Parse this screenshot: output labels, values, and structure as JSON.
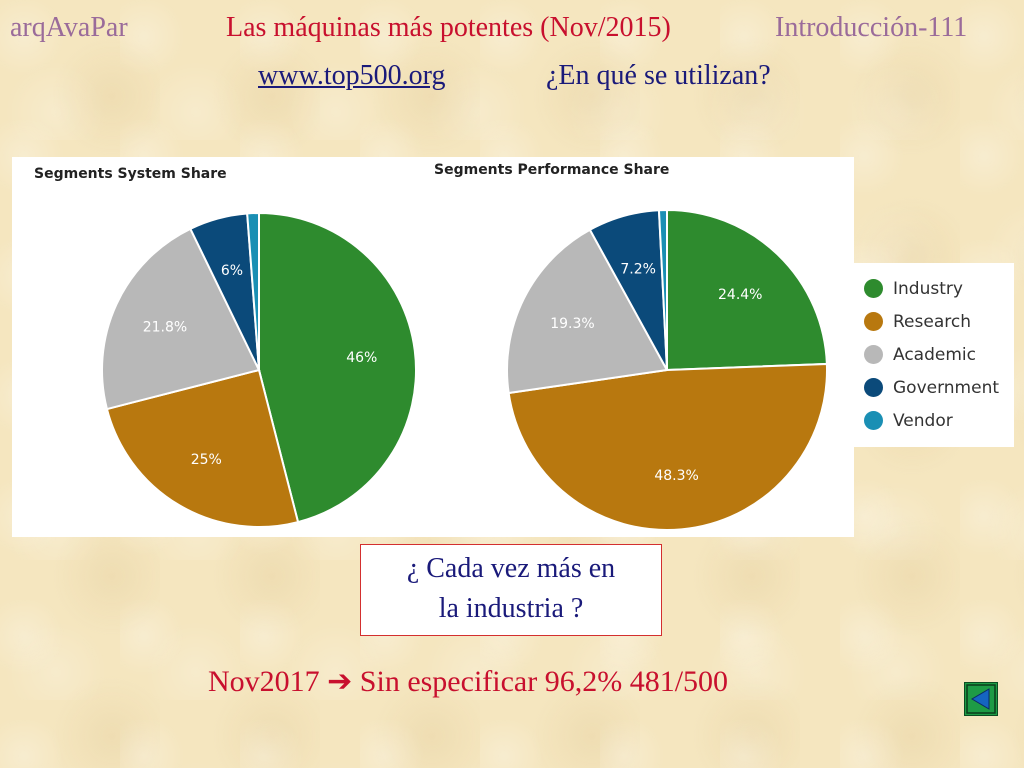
{
  "header": {
    "course": "arqAvaPar",
    "title": "Las máquinas más potentes (Nov/2015)",
    "slide_number": "Introducción-111",
    "link": "www.top500.org",
    "question": "¿En qué se utilizan?"
  },
  "colors": {
    "Industry": "#2e8b2e",
    "Research": "#b8780f",
    "Academic": "#b8b8b8",
    "Government": "#0b4a7a",
    "Vendor": "#1a8fb4"
  },
  "chart_data": [
    {
      "type": "pie",
      "title": "Segments System Share",
      "categories": [
        "Industry",
        "Research",
        "Academic",
        "Government",
        "Vendor"
      ],
      "values": [
        46,
        25,
        21.8,
        6,
        1.2
      ],
      "labels": [
        "46%",
        "25%",
        "21.8%",
        "6%",
        ""
      ]
    },
    {
      "type": "pie",
      "title": "Segments Performance Share",
      "categories": [
        "Industry",
        "Research",
        "Academic",
        "Government",
        "Vendor"
      ],
      "values": [
        24.4,
        48.3,
        19.3,
        7.2,
        0.8
      ],
      "labels": [
        "24.4%",
        "48.3%",
        "19.3%",
        "7.2%",
        ""
      ]
    }
  ],
  "legend": [
    "Industry",
    "Research",
    "Academic",
    "Government",
    "Vendor"
  ],
  "callout": {
    "line1": "¿ Cada vez más en",
    "line2": "la industria ?"
  },
  "note": "Nov2017 ➔ Sin especificar 96,2%  481/500"
}
